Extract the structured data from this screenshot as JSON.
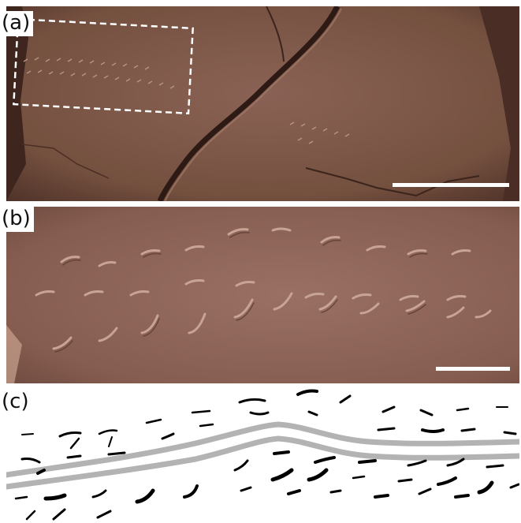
{
  "panels": {
    "a": {
      "label": "(a)"
    },
    "b": {
      "label": "(b)"
    },
    "c": {
      "label": "(c)"
    }
  },
  "colors": {
    "rock": "#7a5548",
    "rock_dark": "#5a3a30",
    "rock_light": "#9a7265",
    "trail": "#b3b3b3",
    "imprint": "#000000",
    "scale_bar": "#ffffff"
  }
}
